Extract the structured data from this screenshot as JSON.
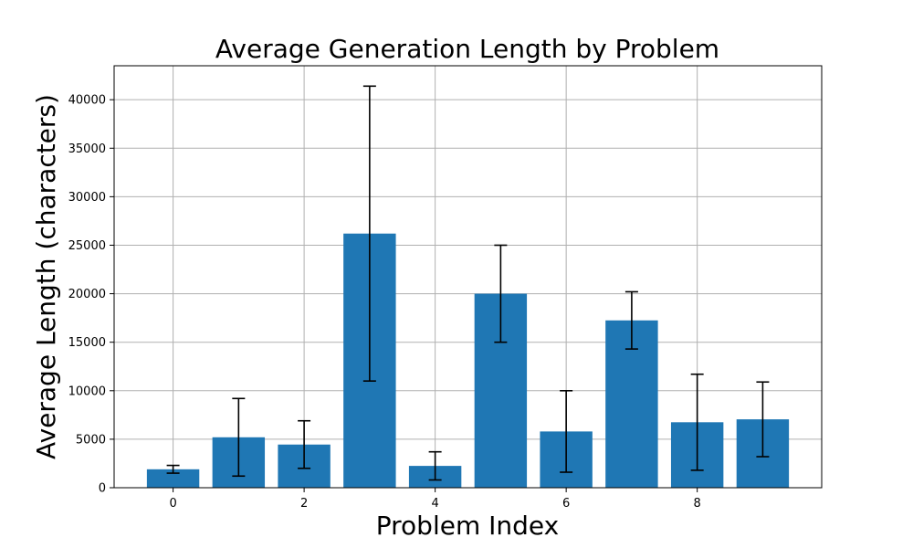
{
  "chart_data": {
    "type": "bar",
    "title": "Average Generation Length by Problem",
    "xlabel": "Problem Index",
    "ylabel": "Average Length (characters)",
    "x": [
      0,
      1,
      2,
      3,
      4,
      5,
      6,
      7,
      8,
      9
    ],
    "values": [
      1900,
      5200,
      4450,
      26200,
      2250,
      20000,
      5800,
      17250,
      6750,
      7050
    ],
    "error_low": [
      1500,
      1200,
      2000,
      11000,
      800,
      15000,
      1600,
      14300,
      1800,
      3200
    ],
    "error_high": [
      2300,
      9200,
      6900,
      41400,
      3700,
      25000,
      10000,
      20200,
      11700,
      10900
    ],
    "xlim": [
      -0.9,
      9.9
    ],
    "ylim": [
      0,
      43500
    ],
    "xticks": [
      0,
      2,
      4,
      6,
      8
    ],
    "xtick_labels": [
      "0",
      "2",
      "4",
      "6",
      "8"
    ],
    "yticks": [
      0,
      5000,
      10000,
      15000,
      20000,
      25000,
      30000,
      35000,
      40000
    ],
    "ytick_labels": [
      "0",
      "5000",
      "10000",
      "15000",
      "20000",
      "25000",
      "30000",
      "35000",
      "40000"
    ],
    "grid": true,
    "bar_color": "#1f77b4",
    "error_color": "#000000"
  }
}
